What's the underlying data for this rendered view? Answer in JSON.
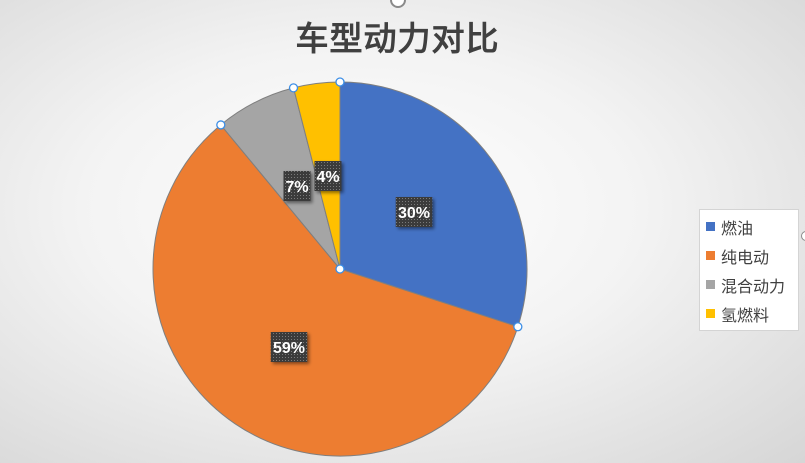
{
  "chart_data": {
    "type": "pie",
    "title": "车型动力对比",
    "categories": [
      "燃油",
      "纯电动",
      "混合动力",
      "氢燃料"
    ],
    "values": [
      30,
      59,
      7,
      4
    ],
    "value_labels": [
      "30%",
      "59%",
      "7%",
      "4%"
    ],
    "colors": [
      "#4472C4",
      "#ED7D31",
      "#A5A5A5",
      "#FFC000"
    ],
    "legend": "right",
    "selected": true
  }
}
